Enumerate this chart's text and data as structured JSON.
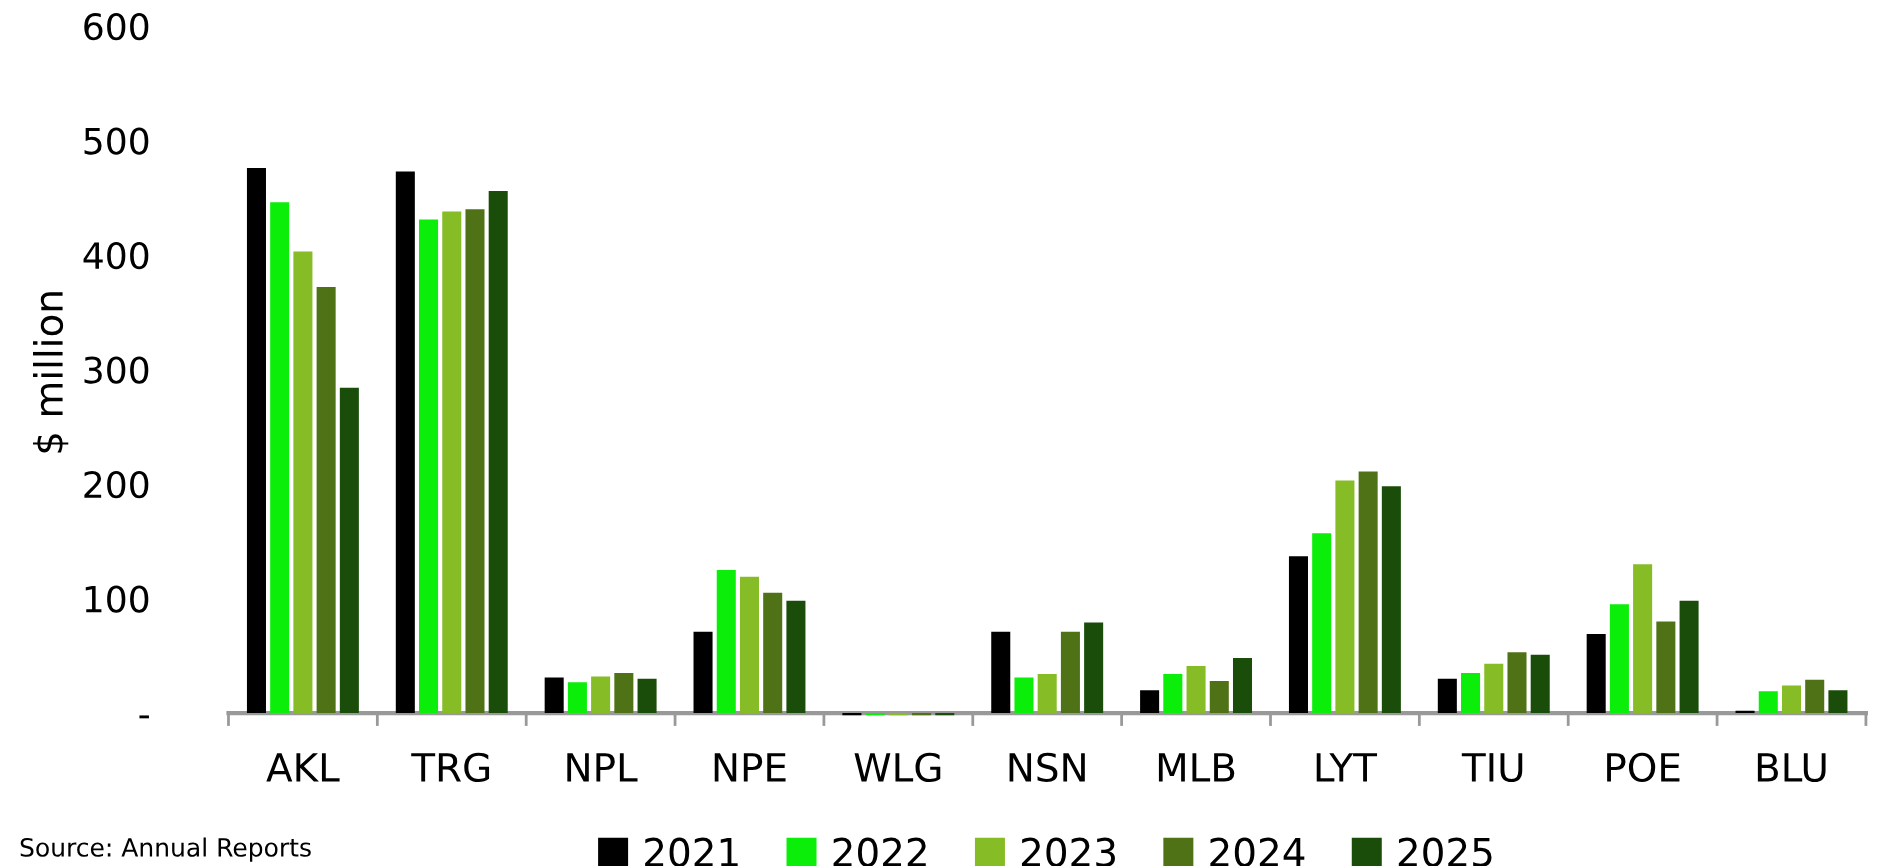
{
  "chart_data": {
    "type": "bar",
    "ylabel": "$ million",
    "categories": [
      "AKL",
      "TRG",
      "NPL",
      "NPE",
      "WLG",
      "NSN",
      "MLB",
      "LYT",
      "TIU",
      "POE",
      "BLU"
    ],
    "series": [
      {
        "name": "2021",
        "color": "#000000",
        "values": [
          476,
          473,
          31,
          71,
          -2,
          71,
          20,
          137,
          30,
          69,
          2
        ]
      },
      {
        "name": "2022",
        "color": "#0aee0a",
        "values": [
          446,
          431,
          27,
          125,
          -2,
          31,
          34,
          157,
          35,
          95,
          19
        ]
      },
      {
        "name": "2023",
        "color": "#86bc25",
        "values": [
          403,
          438,
          32,
          119,
          -2,
          34,
          41,
          203,
          43,
          130,
          24
        ]
      },
      {
        "name": "2024",
        "color": "#507216",
        "values": [
          372,
          440,
          35,
          105,
          -2,
          71,
          28,
          211,
          53,
          80,
          29
        ]
      },
      {
        "name": "2025",
        "color": "#1a4d0a",
        "values": [
          284,
          456,
          30,
          98,
          -2,
          79,
          48,
          198,
          51,
          98,
          20
        ]
      }
    ],
    "ylim": [
      -5,
      600
    ],
    "yticks": [
      {
        "value": 0,
        "label": "-"
      },
      100,
      200,
      300,
      400,
      500,
      600
    ],
    "grid": false,
    "legend": "bottom",
    "annotations": [
      "Source: Annual Reports"
    ]
  }
}
